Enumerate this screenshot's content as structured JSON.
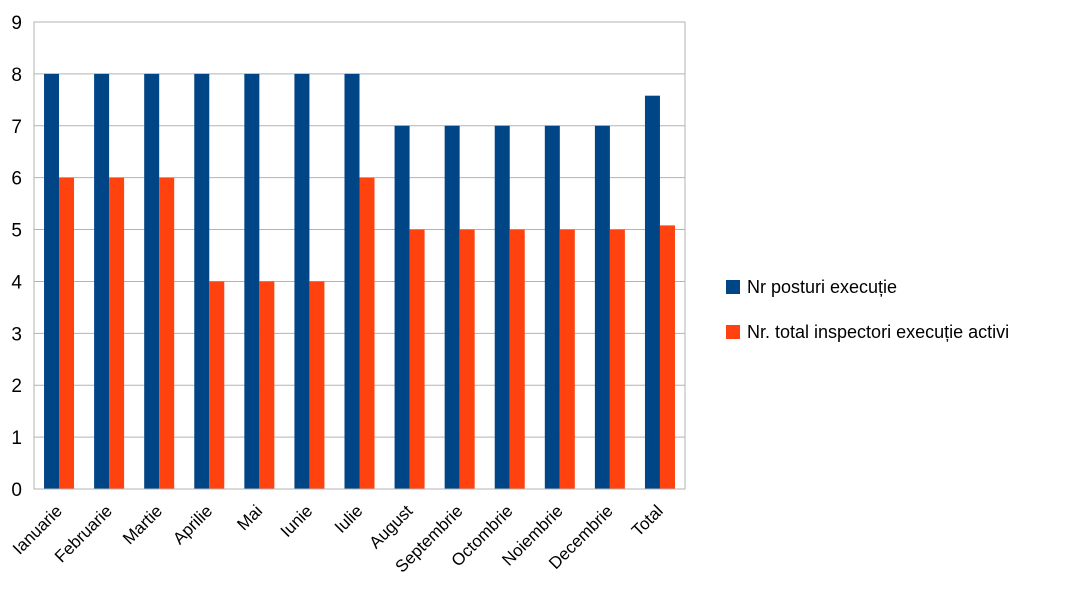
{
  "chart_data": {
    "type": "bar",
    "categories": [
      "Ianuarie",
      "Februarie",
      "Martie",
      "Aprilie",
      "Mai",
      "Iunie",
      "Iulie",
      "August",
      "Septembrie",
      "Octombrie",
      "Noiembrie",
      "Decembrie",
      "Total"
    ],
    "series": [
      {
        "name": "Nr posturi execuție",
        "color": "#004586",
        "values": [
          8,
          8,
          8,
          8,
          8,
          8,
          8,
          7,
          7,
          7,
          7,
          7,
          7.58
        ]
      },
      {
        "name": "Nr. total inspectori execuție activi",
        "color": "#ff420e",
        "values": [
          6,
          6,
          6,
          4,
          4,
          4,
          6,
          5,
          5,
          5,
          5,
          5,
          5.08
        ]
      }
    ],
    "ylim": [
      0,
      9
    ],
    "yticks": [
      "0",
      "1",
      "2",
      "3",
      "4",
      "5",
      "6",
      "7",
      "8",
      "9"
    ],
    "grid": true,
    "legend_position": "right",
    "title": "",
    "xlabel": "",
    "ylabel": ""
  }
}
